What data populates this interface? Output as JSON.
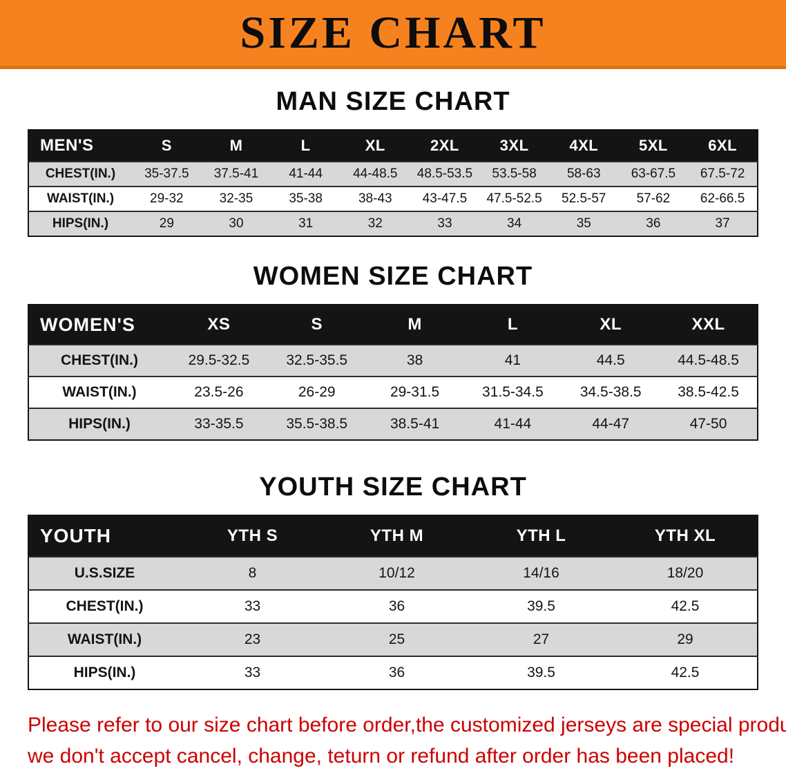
{
  "banner": {
    "title": "SIZE CHART"
  },
  "tables": [
    {
      "key": "men",
      "heading": "MAN SIZE CHART",
      "header": [
        "MEN'S",
        "S",
        "M",
        "L",
        "XL",
        "2XL",
        "3XL",
        "4XL",
        "5XL",
        "6XL"
      ],
      "rows": [
        [
          "CHEST(IN.)",
          "35-37.5",
          "37.5-41",
          "41-44",
          "44-48.5",
          "48.5-53.5",
          "53.5-58",
          "58-63",
          "63-67.5",
          "67.5-72"
        ],
        [
          "WAIST(IN.)",
          "29-32",
          "32-35",
          "35-38",
          "38-43",
          "43-47.5",
          "47.5-52.5",
          "52.5-57",
          "57-62",
          "62-66.5"
        ],
        [
          "HIPS(IN.)",
          "29",
          "30",
          "31",
          "32",
          "33",
          "34",
          "35",
          "36",
          "37"
        ]
      ]
    },
    {
      "key": "women",
      "heading": "WOMEN SIZE CHART",
      "header": [
        "WOMEN'S",
        "XS",
        "S",
        "M",
        "L",
        "XL",
        "XXL"
      ],
      "rows": [
        [
          "CHEST(IN.)",
          "29.5-32.5",
          "32.5-35.5",
          "38",
          "41",
          "44.5",
          "44.5-48.5"
        ],
        [
          "WAIST(IN.)",
          "23.5-26",
          "26-29",
          "29-31.5",
          "31.5-34.5",
          "34.5-38.5",
          "38.5-42.5"
        ],
        [
          "HIPS(IN.)",
          "33-35.5",
          "35.5-38.5",
          "38.5-41",
          "41-44",
          "44-47",
          "47-50"
        ]
      ]
    },
    {
      "key": "youth",
      "heading": "YOUTH SIZE CHART",
      "header": [
        "YOUTH",
        "YTH S",
        "YTH M",
        "YTH L",
        "YTH XL"
      ],
      "rows": [
        [
          "U.S.SIZE",
          "8",
          "10/12",
          "14/16",
          "18/20"
        ],
        [
          "CHEST(IN.)",
          "33",
          "36",
          "39.5",
          "42.5"
        ],
        [
          "WAIST(IN.)",
          "23",
          "25",
          "27",
          "29"
        ],
        [
          "HIPS(IN.)",
          "33",
          "36",
          "39.5",
          "42.5"
        ]
      ]
    }
  ],
  "footer": {
    "line1": "Please refer to our size chart before order,the customized jerseys are special products,",
    "line2": "we don't accept cancel, change, teturn or refund after order has been placed!"
  },
  "colors": {
    "banner_bg": "#f6821f",
    "table_header_bg": "#141414",
    "row_stripe": "#d8d8d8",
    "note_text": "#cc0000"
  }
}
